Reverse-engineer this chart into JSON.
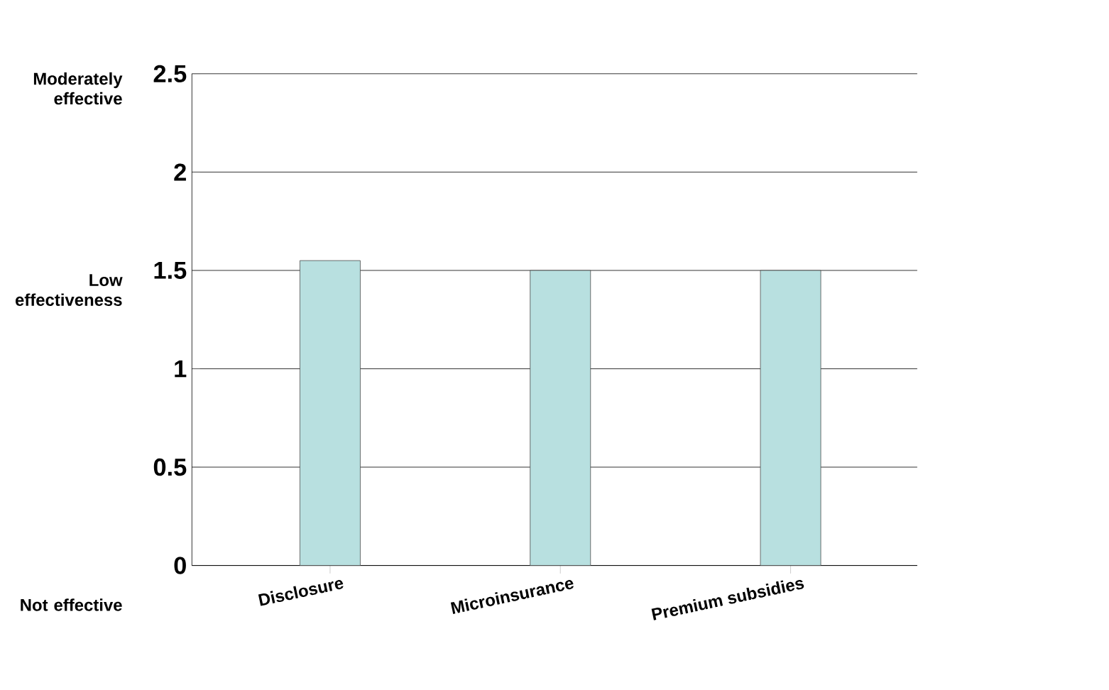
{
  "chart_data": {
    "type": "bar",
    "categories": [
      "Disclosure",
      "Microinsurance",
      "Premium subsidies"
    ],
    "values": [
      1.55,
      1.5,
      1.5
    ],
    "color": "#b8e0e0",
    "ylim": [
      0,
      2.5
    ],
    "yticks": [
      0,
      0.5,
      1,
      1.5,
      2,
      2.5
    ],
    "grid": "y",
    "annotations": [
      "Moderately effective",
      "Low effectiveness",
      "Not effective"
    ]
  }
}
